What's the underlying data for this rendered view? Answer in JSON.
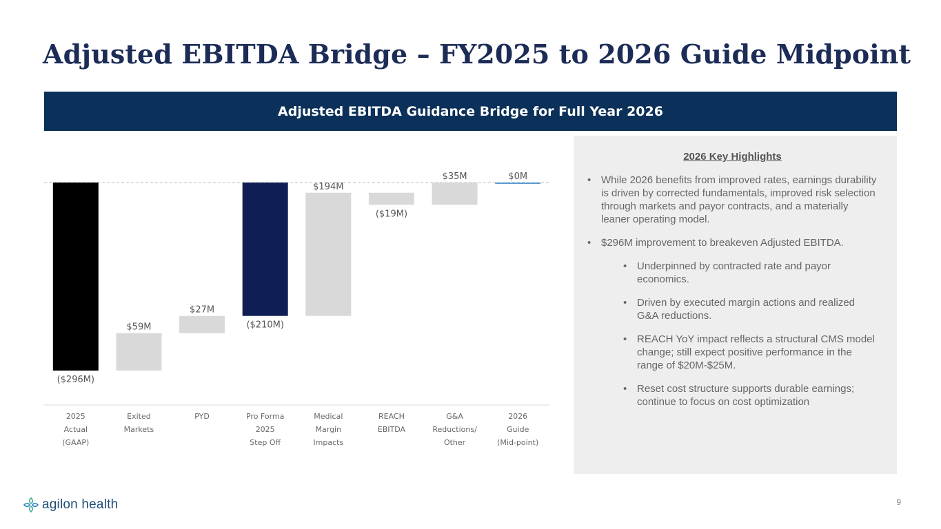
{
  "title": "Adjusted EBITDA Bridge – FY2025 to 2026 Guide Midpoint",
  "banner": "Adjusted EBITDA Guidance Bridge for Full Year 2026",
  "chart_data": {
    "type": "bar",
    "subtype": "waterfall",
    "title": "Adjusted EBITDA Guidance Bridge for Full Year 2026",
    "unit": "$M",
    "ylim": [
      -296,
      0
    ],
    "reference_line": 0,
    "categories": [
      [
        "2025",
        "Actual",
        "(GAAP)"
      ],
      [
        "Exited",
        "Markets"
      ],
      [
        "PYD"
      ],
      [
        "Pro Forma",
        "2025",
        "Step Off"
      ],
      [
        "Medical",
        "Margin",
        "Impacts"
      ],
      [
        "REACH",
        "EBITDA"
      ],
      [
        "G&A",
        "Reductions/",
        "Other"
      ],
      [
        "2026",
        "Guide",
        "(Mid-point)"
      ]
    ],
    "bars": [
      {
        "kind": "total",
        "start": 0,
        "end": -296,
        "label": "($296M)",
        "label_pos": "below",
        "color": "#000000"
      },
      {
        "kind": "delta",
        "start": -296,
        "end": -237,
        "label": "$59M",
        "label_pos": "above",
        "color": "#d9d9d9"
      },
      {
        "kind": "delta",
        "start": -237,
        "end": -210,
        "label": "$27M",
        "label_pos": "above",
        "color": "#d9d9d9"
      },
      {
        "kind": "total",
        "start": 0,
        "end": -210,
        "label": "($210M)",
        "label_pos": "below",
        "color": "#0f1f55"
      },
      {
        "kind": "delta",
        "start": -210,
        "end": -16,
        "label": "$194M",
        "label_pos": "above",
        "color": "#d9d9d9"
      },
      {
        "kind": "delta",
        "start": -16,
        "end": -35,
        "label": "($19M)",
        "label_pos": "below",
        "color": "#d9d9d9"
      },
      {
        "kind": "delta",
        "start": -35,
        "end": 0,
        "label": "$35M",
        "label_pos": "above",
        "color": "#d9d9d9"
      },
      {
        "kind": "total",
        "start": 0,
        "end": 0,
        "label": "$0M",
        "label_pos": "above",
        "color": "#5b9bd5"
      }
    ]
  },
  "highlights": {
    "heading": "2026 Key Highlights",
    "bullets": [
      "While 2026 benefits from improved rates, earnings durability is driven by corrected fundamentals, improved risk selection through markets and payor contracts, and a materially leaner operating model.",
      "$296M improvement to breakeven Adjusted EBITDA."
    ],
    "sub_bullets": [
      "Underpinned by contracted rate and payor economics.",
      "Driven by executed margin actions and realized G&A reductions.",
      "REACH YoY impact reflects a structural CMS model change; still expect positive performance in the range of $20M-$25M.",
      "Reset cost structure supports durable earnings; continue to focus on cost optimization"
    ]
  },
  "footer": {
    "logo_text": "agilon health",
    "page_number": "9"
  }
}
